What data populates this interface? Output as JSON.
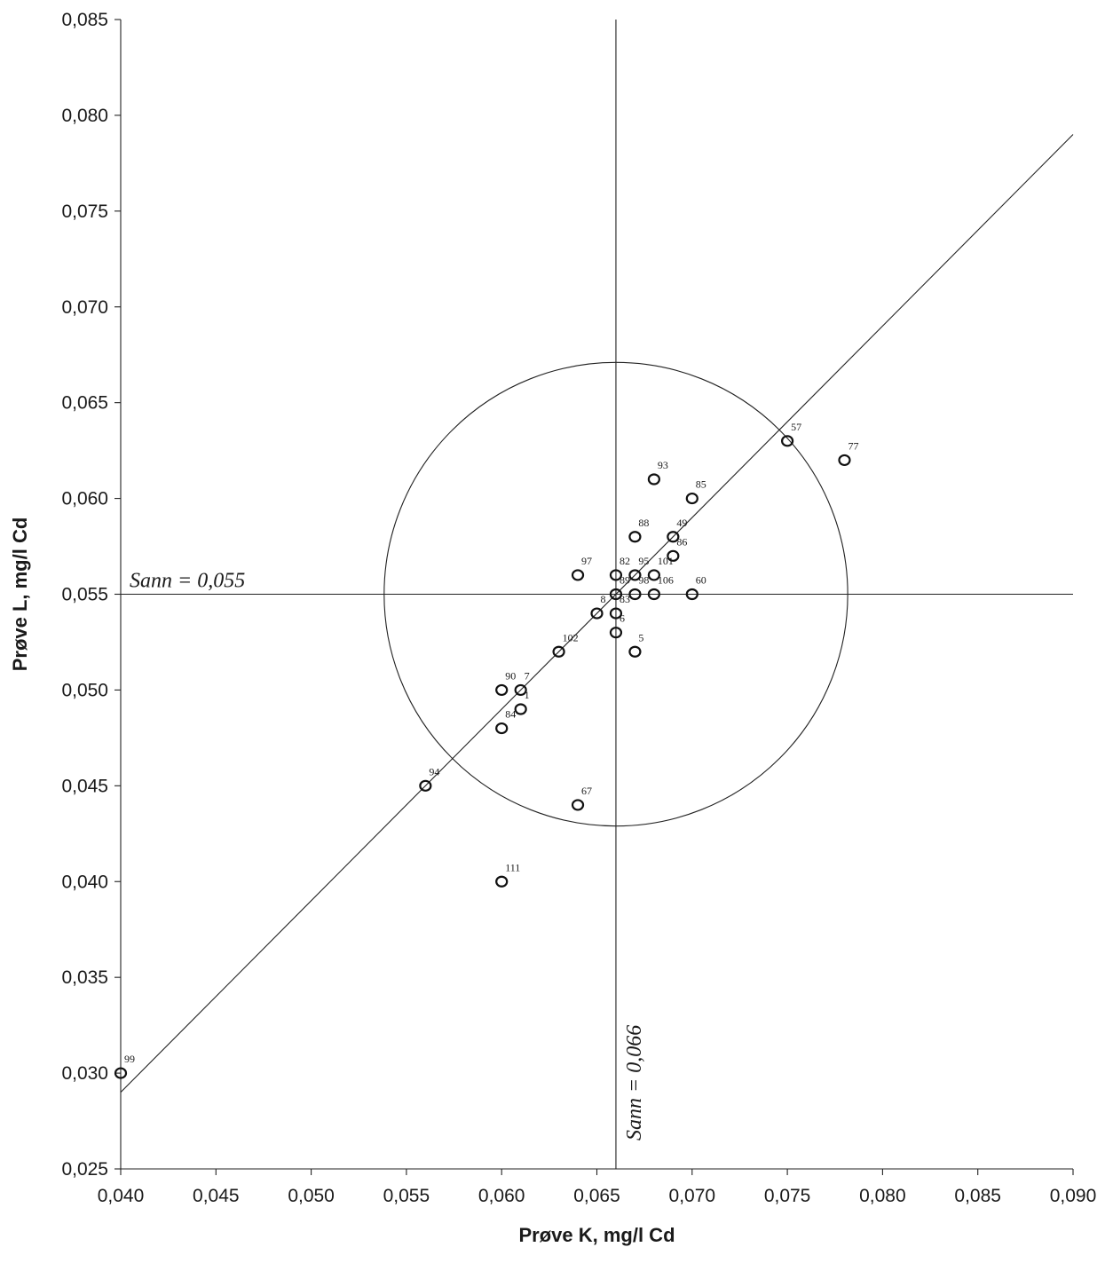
{
  "chart_data": {
    "type": "scatter",
    "xlabel": "Prøve K, mg/l Cd",
    "ylabel": "Prøve L, mg/l Cd",
    "xlim": [
      0.04,
      0.09
    ],
    "ylim": [
      0.025,
      0.085
    ],
    "x_ticks": [
      "0,040",
      "0,045",
      "0,050",
      "0,055",
      "0,060",
      "0,065",
      "0,070",
      "0,075",
      "0,080",
      "0,085",
      "0,090"
    ],
    "y_ticks": [
      "0,025",
      "0,030",
      "0,035",
      "0,040",
      "0,045",
      "0,050",
      "0,055",
      "0,060",
      "0,065",
      "0,070",
      "0,075",
      "0,080",
      "0,085"
    ],
    "true_x": 0.066,
    "true_y": 0.055,
    "true_x_label": "Sann = 0,066",
    "true_y_label": "Sann = 0,055",
    "circle_radius_y": 0.0121,
    "grid": false,
    "legend": "none",
    "points": [
      {
        "label": "57",
        "x": 0.075,
        "y": 0.063
      },
      {
        "label": "77",
        "x": 0.078,
        "y": 0.062
      },
      {
        "label": "93",
        "x": 0.068,
        "y": 0.061
      },
      {
        "label": "85",
        "x": 0.07,
        "y": 0.06
      },
      {
        "label": "88",
        "x": 0.067,
        "y": 0.058
      },
      {
        "label": "49",
        "x": 0.069,
        "y": 0.058
      },
      {
        "label": "86",
        "x": 0.069,
        "y": 0.057
      },
      {
        "label": "97",
        "x": 0.064,
        "y": 0.056
      },
      {
        "label": "82",
        "x": 0.066,
        "y": 0.056
      },
      {
        "label": "95",
        "x": 0.067,
        "y": 0.056
      },
      {
        "label": "101",
        "x": 0.068,
        "y": 0.056
      },
      {
        "label": "60",
        "x": 0.07,
        "y": 0.055
      },
      {
        "label": "89",
        "x": 0.066,
        "y": 0.055
      },
      {
        "label": "98",
        "x": 0.067,
        "y": 0.055
      },
      {
        "label": "106",
        "x": 0.068,
        "y": 0.055
      },
      {
        "label": "83",
        "x": 0.066,
        "y": 0.054
      },
      {
        "label": "8",
        "x": 0.065,
        "y": 0.054
      },
      {
        "label": "6",
        "x": 0.066,
        "y": 0.053
      },
      {
        "label": "5",
        "x": 0.067,
        "y": 0.052
      },
      {
        "label": "102",
        "x": 0.063,
        "y": 0.052
      },
      {
        "label": "90",
        "x": 0.06,
        "y": 0.05
      },
      {
        "label": "7",
        "x": 0.061,
        "y": 0.05
      },
      {
        "label": "1",
        "x": 0.061,
        "y": 0.049
      },
      {
        "label": "84",
        "x": 0.06,
        "y": 0.048
      },
      {
        "label": "94",
        "x": 0.056,
        "y": 0.045
      },
      {
        "label": "67",
        "x": 0.064,
        "y": 0.044
      },
      {
        "label": "111",
        "x": 0.06,
        "y": 0.04
      },
      {
        "label": "99",
        "x": 0.04,
        "y": 0.03
      }
    ]
  }
}
